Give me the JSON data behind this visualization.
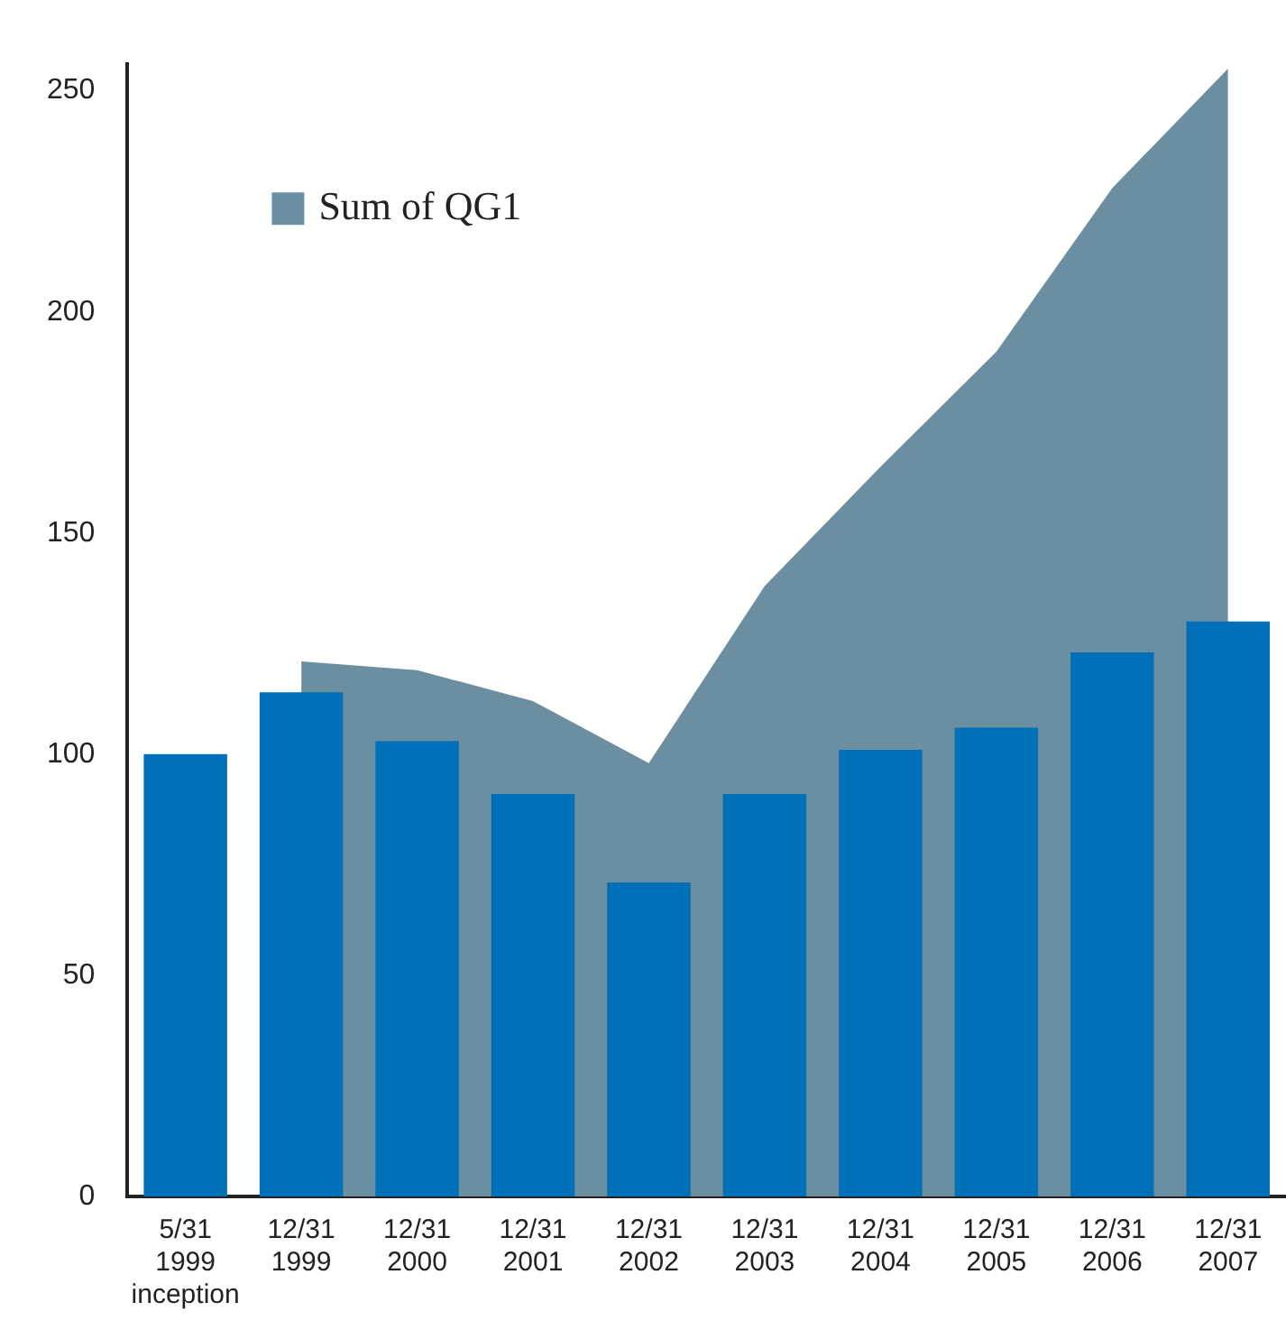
{
  "chart_data": {
    "type": "bar",
    "categories": [
      "5/31\n1999\ninception",
      "12/31\n1999",
      "12/31\n2000",
      "12/31\n2001",
      "12/31\n2002",
      "12/31\n2003",
      "12/31\n2004",
      "12/31\n2005",
      "12/31\n2006",
      "12/31\n2007"
    ],
    "series": [
      {
        "name": "Sum of QG1",
        "type": "area",
        "color": "#6b8fa0",
        "values": [
          null,
          121,
          119,
          112,
          98,
          138,
          165,
          191,
          228,
          255
        ]
      },
      {
        "color": "#0070b8",
        "values": [
          100,
          114,
          103,
          91,
          71,
          91,
          101,
          106,
          123,
          130
        ]
      }
    ],
    "ylim": [
      0,
      256
    ],
    "yticks": [
      0,
      50,
      100,
      150,
      200,
      250
    ],
    "grid": false,
    "legend": "top left"
  }
}
